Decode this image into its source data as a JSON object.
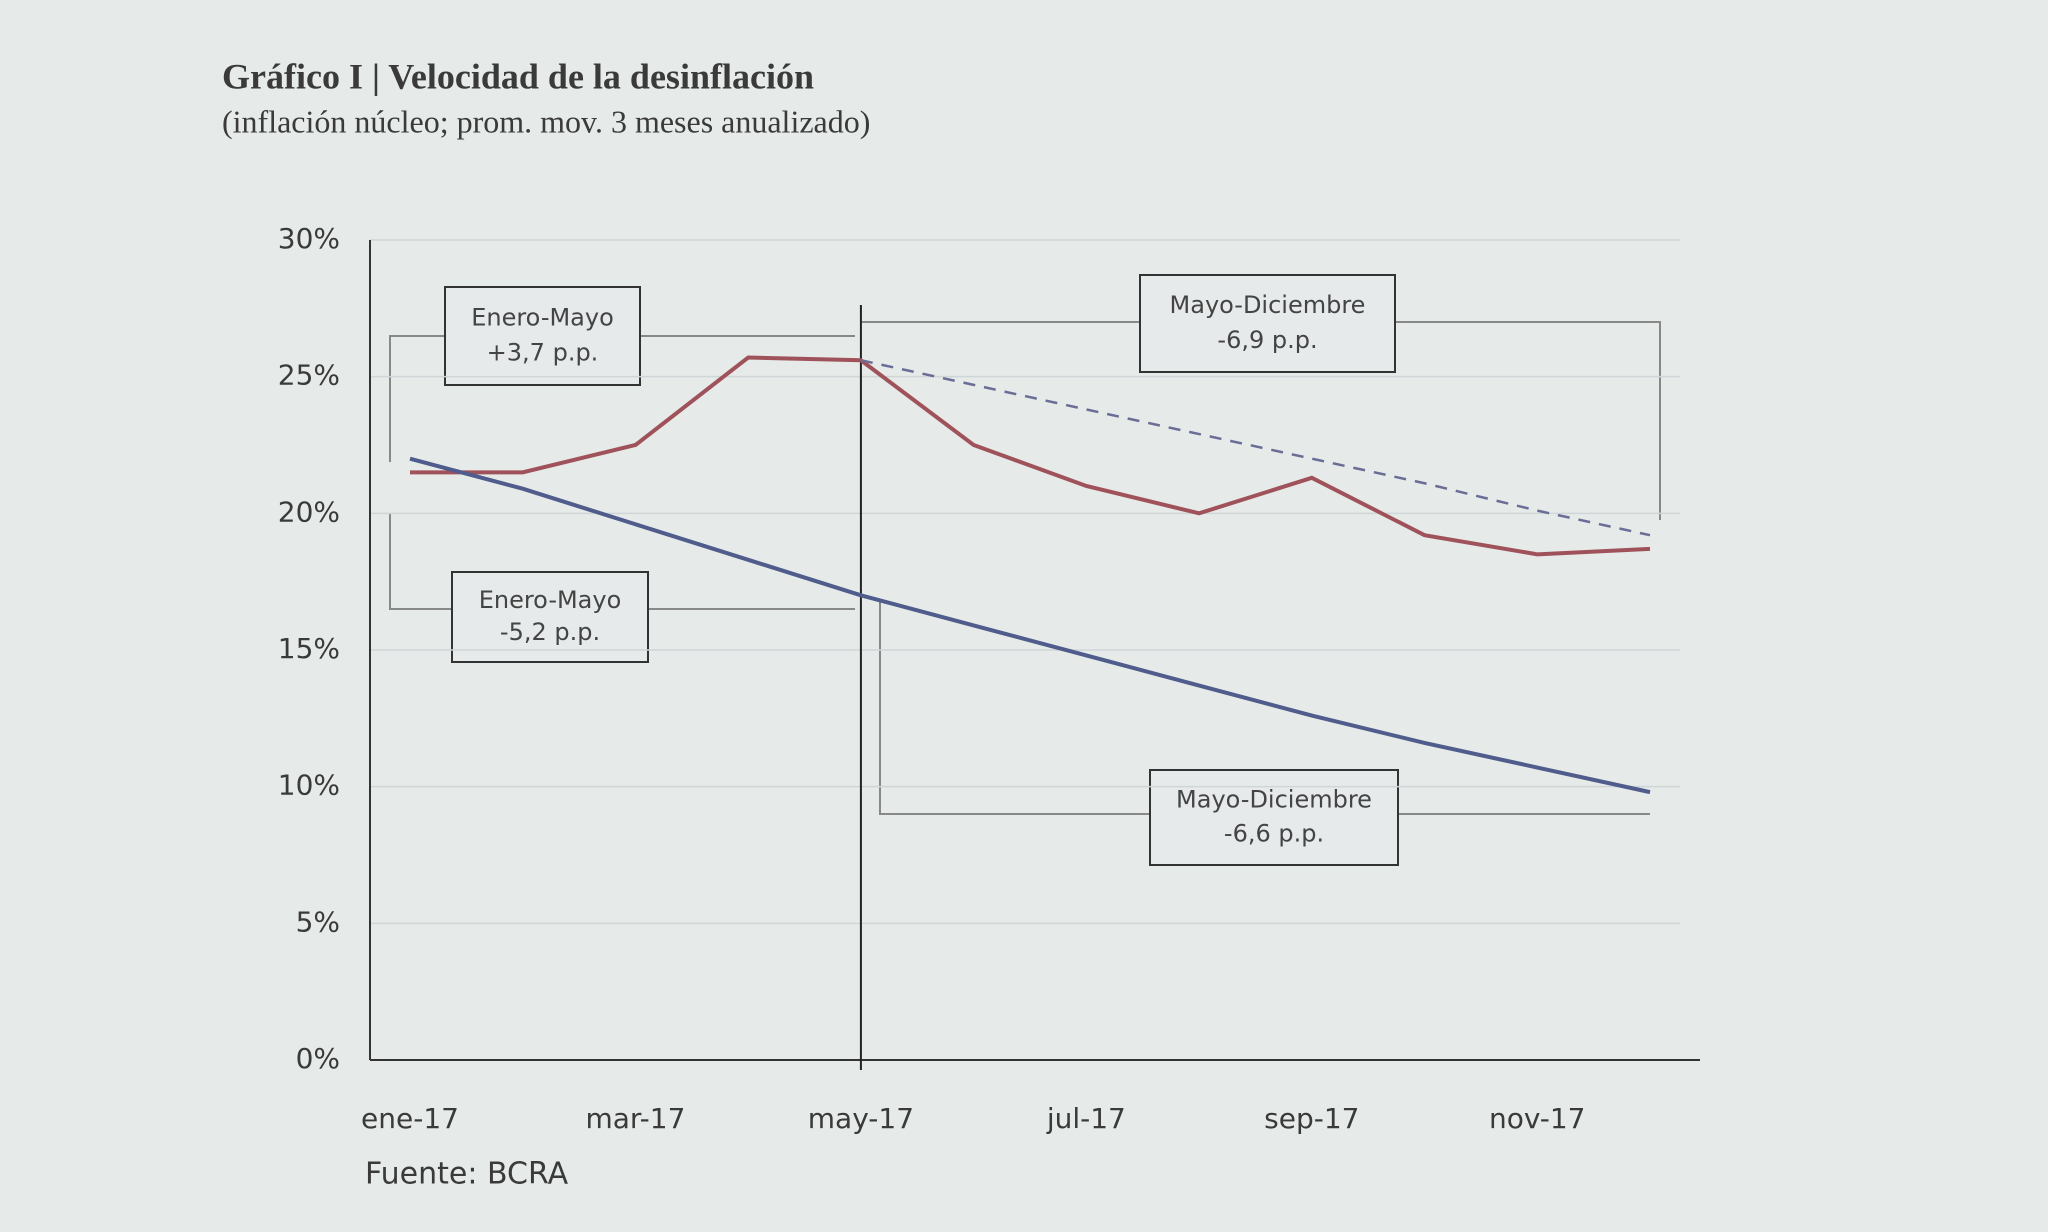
{
  "chart_data": {
    "type": "line",
    "title": "Gráfico I | Velocidad de la desinflación",
    "subtitle": "(inflación núcleo; prom. mov. 3 meses anualizado)",
    "source": "Fuente: BCRA",
    "categories": [
      "ene-17",
      null,
      "mar-17",
      null,
      "may-17",
      null,
      "jul-17",
      null,
      "sep-17",
      null,
      "nov-17",
      null
    ],
    "series": [
      {
        "color": "#a0525a",
        "dash": false,
        "values": [
          21.5,
          21.5,
          22.5,
          25.7,
          25.6,
          22.5,
          21.0,
          20.0,
          21.3,
          19.2,
          18.5,
          18.7
        ]
      },
      {
        "color": "#4f5c8c",
        "dash": false,
        "values": [
          22.0,
          20.9,
          19.6,
          18.3,
          17.0,
          15.9,
          14.8,
          13.7,
          12.6,
          11.6,
          10.7,
          9.8
        ]
      },
      {
        "color": "#6a6e96",
        "dash": true,
        "values": [
          null,
          null,
          null,
          null,
          25.6,
          24.7,
          23.8,
          22.9,
          22.0,
          21.1,
          20.1,
          19.2
        ]
      }
    ],
    "annotations": [
      {
        "text": [
          "Enero-Mayo",
          "+3,7 p.p."
        ]
      },
      {
        "text": [
          "Mayo-Diciembre",
          "-6,9 p.p."
        ]
      },
      {
        "text": [
          "Enero-Mayo",
          "-5,2 p.p."
        ]
      },
      {
        "text": [
          "Mayo-Diciembre",
          "-6,6 p.p."
        ]
      }
    ],
    "ylim": [
      0,
      30
    ],
    "yticks": [
      {
        "value": 0,
        "label": "0%"
      },
      {
        "value": 5,
        "label": "5%"
      },
      {
        "value": 10,
        "label": "10%"
      },
      {
        "value": 15,
        "label": "15%"
      },
      {
        "value": 20,
        "label": "20%"
      },
      {
        "value": 25,
        "label": "25%"
      },
      {
        "value": 30,
        "label": "30%"
      }
    ],
    "grid": true
  }
}
